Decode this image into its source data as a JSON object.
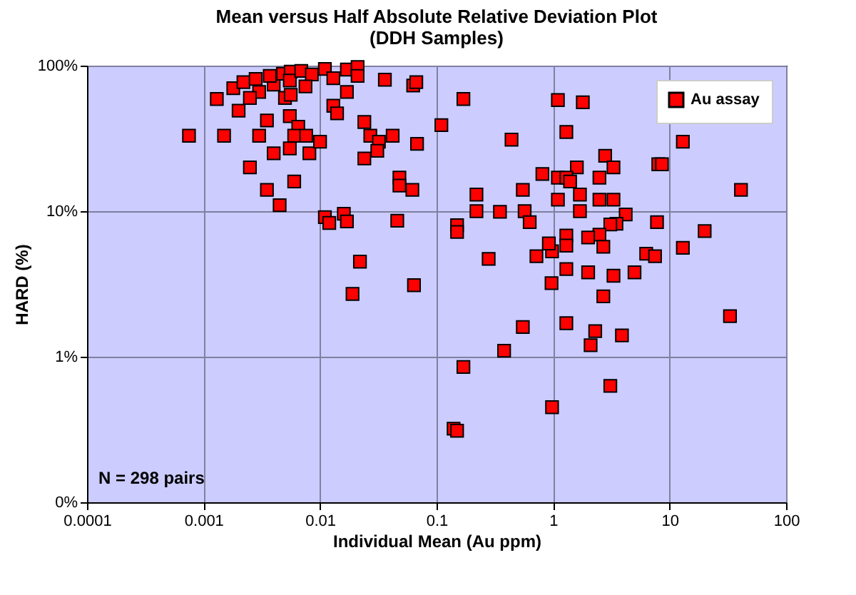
{
  "chart_data": {
    "type": "scatter",
    "title": "Mean versus Half Absolute Relative Deviation Plot",
    "subtitle": "(DDH Samples)",
    "xlabel": "Individual Mean (Au ppm)",
    "ylabel": "HARD (%)",
    "log": "xy",
    "grid": true,
    "legend": "top right",
    "marker": "square",
    "xlim": [
      0.0001,
      100
    ],
    "xticks": [
      0.0001,
      0.001,
      0.01,
      0.1,
      1,
      10,
      100
    ],
    "ylim": [
      0.1,
      100
    ],
    "yticks": [
      {
        "value": 0.1,
        "label": "0%"
      },
      {
        "value": 1,
        "label": "1%"
      },
      {
        "value": 10,
        "label": "10%"
      },
      {
        "value": 100,
        "label": "100%"
      }
    ],
    "annotations": [
      "N = 298 pairs"
    ],
    "series": [
      {
        "name": "Au assay",
        "color": "#ff0000",
        "x": [
          0.00075,
          0.0015,
          0.0013,
          0.0018,
          0.0022,
          0.0028,
          0.003,
          0.0025,
          0.002,
          0.003,
          0.0035,
          0.004,
          0.0037,
          0.0048,
          0.0056,
          0.0055,
          0.005,
          0.0056,
          0.0069,
          0.0085,
          0.0075,
          0.0055,
          0.0065,
          0.006,
          0.0076,
          0.0055,
          0.004,
          0.0081,
          0.01,
          0.0025,
          0.006,
          0.0035,
          0.0045,
          0.011,
          0.013,
          0.013,
          0.014,
          0.017,
          0.011,
          0.012,
          0.016,
          0.017,
          0.021,
          0.021,
          0.036,
          0.063,
          0.067,
          0.024,
          0.027,
          0.032,
          0.031,
          0.042,
          0.068,
          0.024,
          0.048,
          0.048,
          0.062,
          0.017,
          0.046,
          0.022,
          0.064,
          0.019,
          0.17,
          0.11,
          0.44,
          0.81,
          0.55,
          0.22,
          0.22,
          0.35,
          0.57,
          0.63,
          0.15,
          0.15,
          0.28,
          0.72,
          0.98,
          0.92,
          0.97,
          0.55,
          1.1,
          1.1,
          1.1,
          1.8,
          1.3,
          2.8,
          1.6,
          3.3,
          2.5,
          1.3,
          1.4,
          1.7,
          2.5,
          3.3,
          1.7,
          4.2,
          3.5,
          3.1,
          7.8,
          2.5,
          2.0,
          2.7,
          1.3,
          1.3,
          8.0,
          8.6,
          13,
          41,
          20,
          13,
          6.3,
          7.5,
          1.3,
          2.0,
          3.3,
          5.0,
          2.7,
          33,
          1.3,
          2.3,
          3.9,
          0.14,
          0.15,
          2.1,
          0.38,
          0.17,
          3.1,
          0.98
        ],
        "values": [
          33,
          33,
          59,
          70,
          77,
          81,
          66,
          60,
          49,
          33,
          42,
          74,
          85,
          88,
          91,
          79,
          60,
          63,
          92,
          87,
          72,
          45,
          38,
          33,
          33,
          27,
          25,
          25,
          30,
          20,
          16,
          14,
          11,
          95,
          82,
          53,
          47,
          66,
          9.1,
          8.3,
          9.6,
          94,
          98,
          85,
          80,
          73,
          77,
          41,
          33,
          30,
          26,
          33,
          29,
          23,
          17,
          15,
          14,
          8.5,
          8.6,
          4.5,
          3.1,
          2.7,
          59,
          39,
          31,
          18,
          14,
          13,
          10,
          9.9,
          10,
          8.4,
          8.0,
          7.2,
          4.7,
          4.9,
          5.3,
          6.0,
          3.2,
          1.6,
          58,
          12,
          17,
          56,
          35,
          24,
          20,
          20,
          17,
          17,
          16,
          13,
          12,
          12,
          10,
          9.5,
          8.2,
          8.1,
          8.4,
          6.9,
          6.6,
          5.7,
          6.8,
          5.8,
          21,
          21,
          30,
          14,
          7.3,
          5.6,
          5.1,
          4.9,
          4.0,
          3.8,
          3.6,
          3.8,
          2.6,
          1.9,
          1.7,
          1.5,
          1.4,
          0.32,
          0.31,
          1.2,
          1.1,
          0.85,
          0.63,
          0.45
        ]
      }
    ]
  }
}
